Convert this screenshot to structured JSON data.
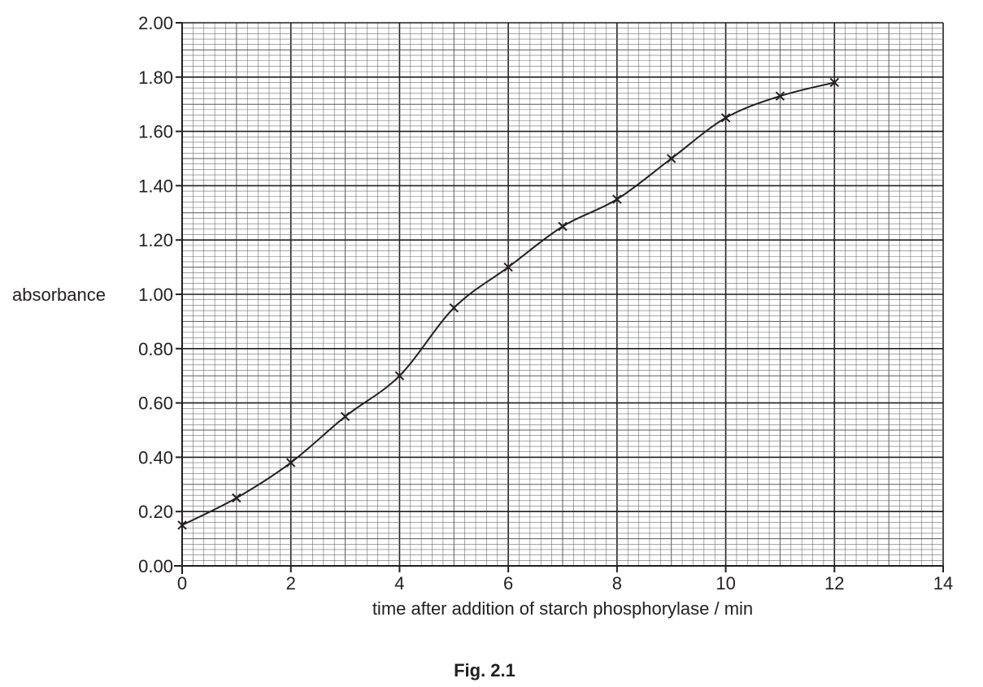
{
  "chart_data": {
    "type": "line",
    "xlabel": "time after addition of starch phosphorylase / min",
    "ylabel": "absorbance",
    "caption": "Fig. 2.1",
    "xlim": [
      0,
      14
    ],
    "ylim": [
      0,
      2
    ],
    "x_ticks": [
      0,
      2,
      4,
      6,
      8,
      10,
      12,
      14
    ],
    "x_tick_labels": [
      "0",
      "2",
      "4",
      "6",
      "8",
      "10",
      "12",
      "14"
    ],
    "y_ticks": [
      0,
      0.2,
      0.4,
      0.6,
      0.8,
      1.0,
      1.2,
      1.4,
      1.6,
      1.8,
      2.0
    ],
    "y_tick_labels": [
      "0.00",
      "0.20",
      "0.40",
      "0.60",
      "0.80",
      "1.00",
      "1.20",
      "1.40",
      "1.60",
      "1.80",
      "2.00"
    ],
    "grid": true,
    "marker": "x",
    "line_color": "#231f20",
    "series": [
      {
        "x": [
          0,
          1,
          2,
          3,
          4,
          5,
          6,
          7,
          8,
          9,
          10,
          11,
          12
        ],
        "y": [
          0.15,
          0.25,
          0.38,
          0.55,
          0.7,
          0.95,
          1.1,
          1.25,
          1.35,
          1.5,
          1.65,
          1.73,
          1.78
        ]
      }
    ]
  }
}
